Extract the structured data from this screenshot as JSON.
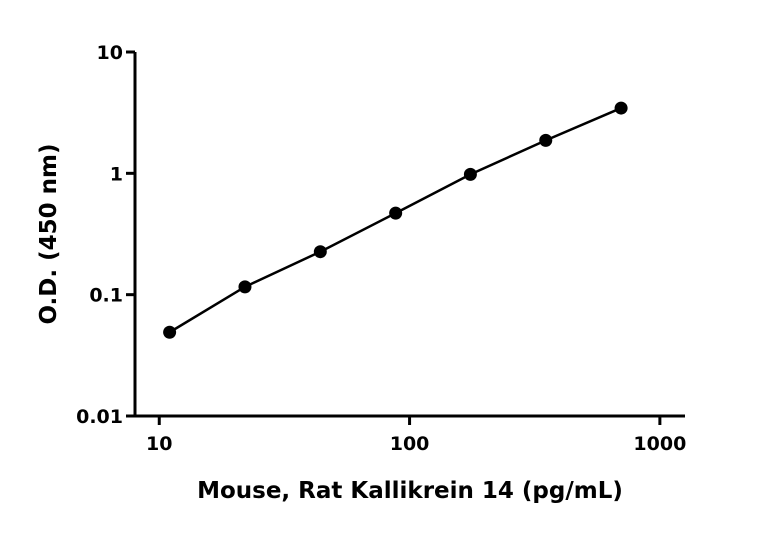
{
  "chart_data": {
    "type": "line",
    "x_label": "Mouse, Rat Kallikrein 14 (pg/mL)",
    "y_label": "O.D. (450 nm)",
    "x": [
      11,
      22,
      44,
      88,
      175,
      350,
      700
    ],
    "series": [
      {
        "name": "O.D.",
        "color": "#000000",
        "values": [
          0.049,
          0.116,
          0.226,
          0.47,
          0.98,
          1.87,
          3.45
        ]
      }
    ],
    "xlim": [
      8,
      1260
    ],
    "ylim": [
      0.01,
      10
    ],
    "xticks": [
      10,
      100,
      1000
    ],
    "yticks": [
      0.01,
      0.1,
      1,
      10
    ],
    "xscale": "log",
    "yscale": "log",
    "grid": false,
    "markers": true
  }
}
